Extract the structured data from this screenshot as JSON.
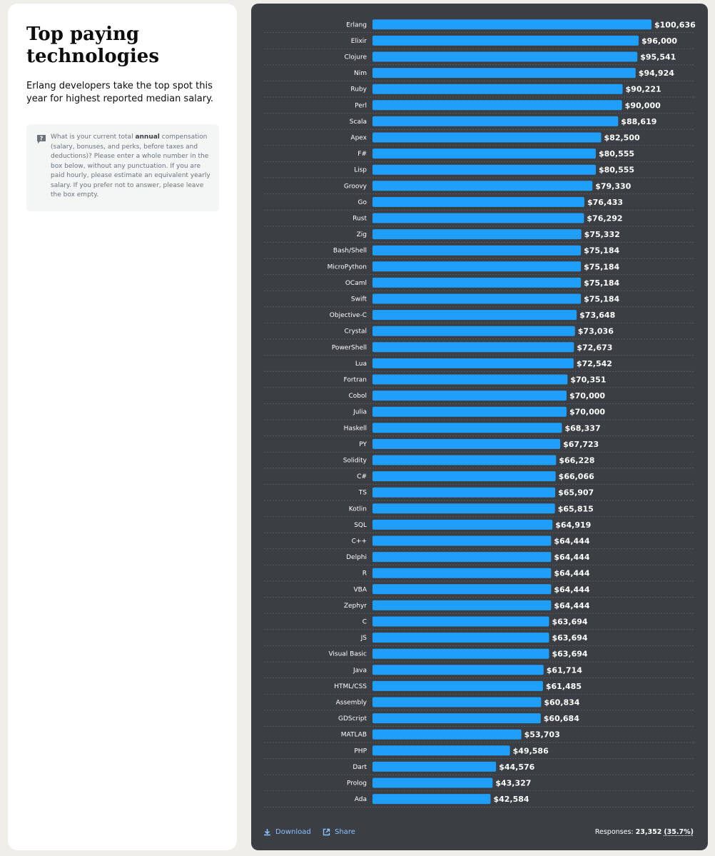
{
  "panel": {
    "title": "Top paying technologies",
    "subtitle": "Erlang developers take the top spot this year for highest reported median salary.",
    "question": {
      "icon": "question-icon",
      "before": "What is your current total ",
      "bold": "annual",
      "after": " compensation (salary, bonuses, and perks, before taxes and deductions)? Please enter a whole number in the box below, without any punctuation. If you are paid hourly, please estimate an equivalent yearly salary. If you prefer not to answer, please leave the box empty."
    }
  },
  "footer": {
    "download_label": "Download",
    "share_label": "Share",
    "responses_label": "Responses:",
    "responses_count": "23,352",
    "responses_pct": "(35.7%)"
  },
  "colors": {
    "bar": "#1f9ffa",
    "background": "#3b3e42",
    "gridline": "#5a5e62",
    "link": "#8cc3ff"
  },
  "chart_data": {
    "type": "bar",
    "orientation": "horizontal",
    "title": "Top paying technologies",
    "value_prefix": "$",
    "xlim": [
      0,
      100636
    ],
    "categories": [
      "Erlang",
      "Elixir",
      "Clojure",
      "Nim",
      "Ruby",
      "Perl",
      "Scala",
      "Apex",
      "F#",
      "Lisp",
      "Groovy",
      "Go",
      "Rust",
      "Zig",
      "Bash/Shell",
      "MicroPython",
      "OCaml",
      "Swift",
      "Objective-C",
      "Crystal",
      "PowerShell",
      "Lua",
      "Fortran",
      "Cobol",
      "Julia",
      "Haskell",
      "PY",
      "Solidity",
      "C#",
      "TS",
      "Kotlin",
      "SQL",
      "C++",
      "Delphi",
      "R",
      "VBA",
      "Zephyr",
      "C",
      "JS",
      "Visual Basic",
      "Java",
      "HTML/CSS",
      "Assembly",
      "GDScript",
      "MATLAB",
      "PHP",
      "Dart",
      "Prolog",
      "Ada"
    ],
    "values": [
      100636,
      96000,
      95541,
      94924,
      90221,
      90000,
      88619,
      82500,
      80555,
      80555,
      79330,
      76433,
      76292,
      75332,
      75184,
      75184,
      75184,
      75184,
      73648,
      73036,
      72673,
      72542,
      70351,
      70000,
      70000,
      68337,
      67723,
      66228,
      66066,
      65907,
      65815,
      64919,
      64444,
      64444,
      64444,
      64444,
      64444,
      63694,
      63694,
      63694,
      61714,
      61485,
      60834,
      60684,
      53703,
      49586,
      44576,
      43327,
      42584
    ],
    "value_labels": [
      "$100,636",
      "$96,000",
      "$95,541",
      "$94,924",
      "$90,221",
      "$90,000",
      "$88,619",
      "$82,500",
      "$80,555",
      "$80,555",
      "$79,330",
      "$76,433",
      "$76,292",
      "$75,332",
      "$75,184",
      "$75,184",
      "$75,184",
      "$75,184",
      "$73,648",
      "$73,036",
      "$72,673",
      "$72,542",
      "$70,351",
      "$70,000",
      "$70,000",
      "$68,337",
      "$67,723",
      "$66,228",
      "$66,066",
      "$65,907",
      "$65,815",
      "$64,919",
      "$64,444",
      "$64,444",
      "$64,444",
      "$64,444",
      "$64,444",
      "$63,694",
      "$63,694",
      "$63,694",
      "$61,714",
      "$61,485",
      "$60,834",
      "$60,684",
      "$53,703",
      "$49,586",
      "$44,576",
      "$43,327",
      "$42,584"
    ]
  }
}
